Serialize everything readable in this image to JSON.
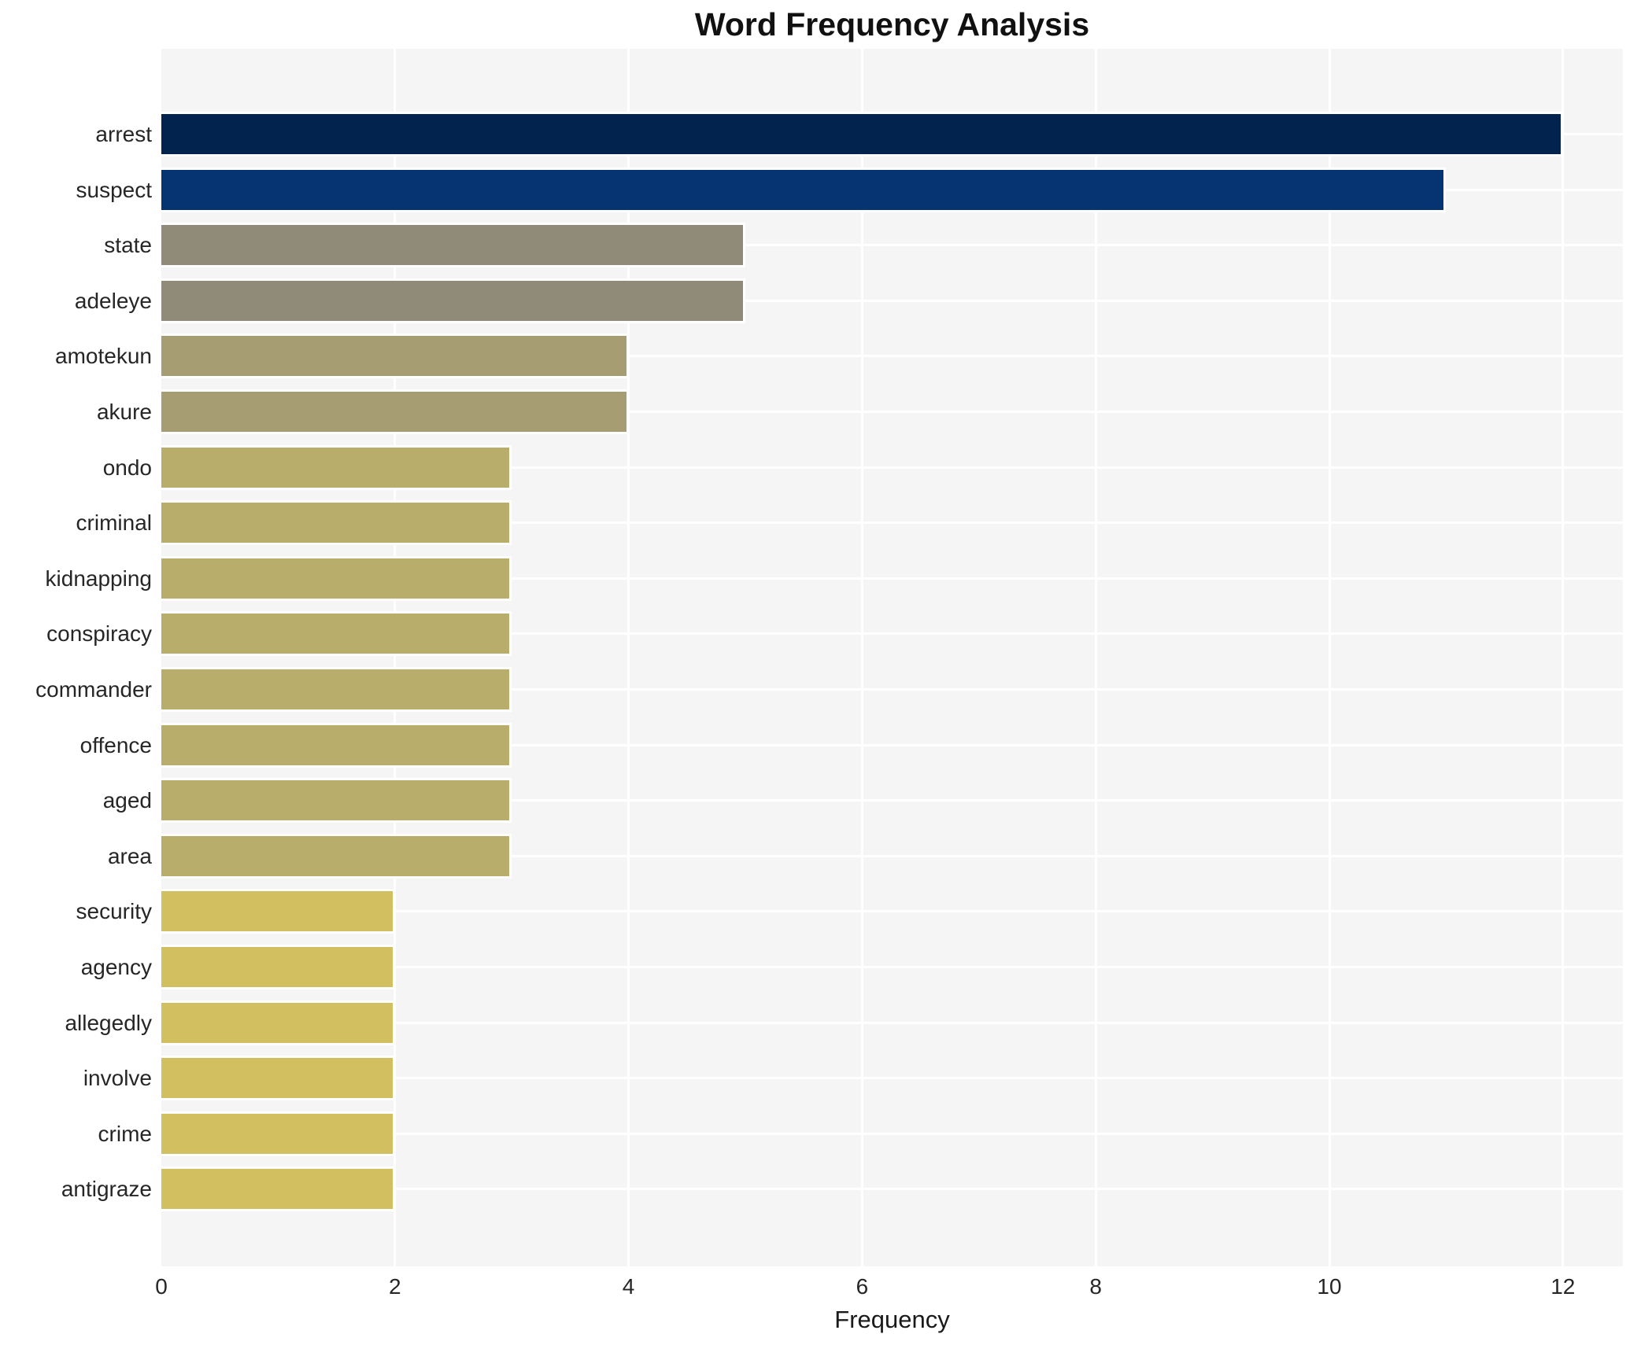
{
  "title": "Word Frequency Analysis",
  "xlabel": "Frequency",
  "chart_data": {
    "type": "bar",
    "orientation": "horizontal",
    "title": "Word Frequency Analysis",
    "xlabel": "Frequency",
    "ylabel": "",
    "categories": [
      "arrest",
      "suspect",
      "state",
      "adeleye",
      "amotekun",
      "akure",
      "ondo",
      "criminal",
      "kidnapping",
      "conspiracy",
      "commander",
      "offence",
      "aged",
      "area",
      "security",
      "agency",
      "allegedly",
      "involve",
      "crime",
      "antigraze"
    ],
    "values": [
      12,
      11,
      5,
      5,
      4,
      4,
      3,
      3,
      3,
      3,
      3,
      3,
      3,
      3,
      2,
      2,
      2,
      2,
      2,
      2
    ],
    "bar_colors": [
      "#02234d",
      "#063371",
      "#908a79",
      "#908a79",
      "#a69d72",
      "#a69d72",
      "#b9ad6c",
      "#b9ad6c",
      "#b9ad6c",
      "#b9ad6c",
      "#b9ad6c",
      "#b9ad6c",
      "#b9ad6c",
      "#b9ad6c",
      "#d2bf60",
      "#d2bf60",
      "#d2bf60",
      "#d2bf60",
      "#d2bf60",
      "#d2bf60"
    ],
    "x_ticks": [
      0,
      2,
      4,
      6,
      8,
      10,
      12
    ],
    "xlim": [
      0,
      12.5
    ],
    "grid": true,
    "legend": false,
    "plot_bg": "#f5f5f6",
    "grid_color": "#ffffff",
    "text_color": "#262626"
  }
}
